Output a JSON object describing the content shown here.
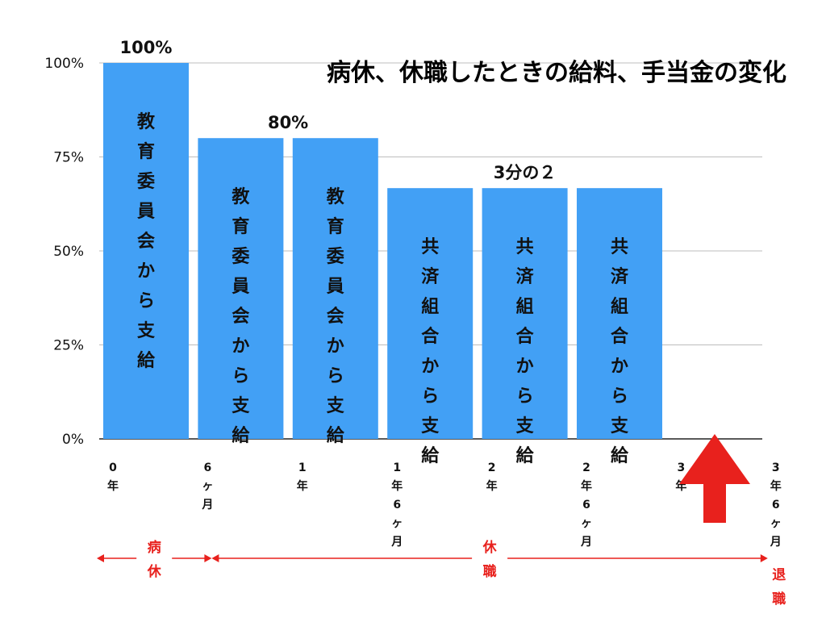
{
  "chart_data": {
    "type": "bar",
    "title": "病休、休職したときの給料、手当金の変化",
    "y_ticks": [
      "100%",
      "75%",
      "50%",
      "25%",
      "0%"
    ],
    "ylim": [
      0,
      100
    ],
    "x_ticks": [
      "0年",
      "6ヶ月",
      "1年",
      "1年6ヶ月",
      "2年",
      "2年6ヶ月",
      "3年",
      "3年6ヶ月"
    ],
    "bars": [
      {
        "value": 100,
        "text": "教育委員会から支給"
      },
      {
        "value": 80,
        "text": "教育委員会から支給"
      },
      {
        "value": 80,
        "text": "教育委員会から支給"
      },
      {
        "value": 66.7,
        "text": "共済組合から支給"
      },
      {
        "value": 66.7,
        "text": "共済組合から支給"
      },
      {
        "value": 66.7,
        "text": "共済組合から支給"
      }
    ],
    "value_labels": [
      {
        "text": "100%",
        "over_bar": 0
      },
      {
        "text": "80%",
        "over_bar": 1.5
      },
      {
        "text": "3分の２",
        "over_bar": 4
      }
    ],
    "bar_color": "#42a0f5",
    "grid": true,
    "periods": [
      {
        "label": "病休",
        "from_tick": 0,
        "to_tick": 1
      },
      {
        "label": "休職",
        "from_tick": 1,
        "to_tick": 7
      }
    ],
    "retirement": {
      "label": "退職",
      "at_tick": 7
    },
    "annotation_color": "#e8211d"
  }
}
